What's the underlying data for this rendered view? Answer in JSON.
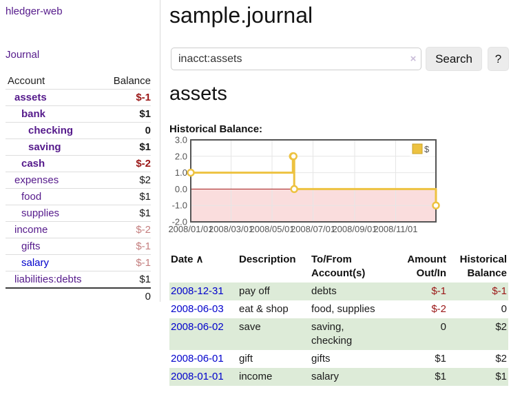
{
  "app": {
    "brand": "hledger-web",
    "nav_journal": "Journal"
  },
  "sidebar": {
    "headers": {
      "account": "Account",
      "balance": "Balance"
    },
    "accounts": [
      {
        "name": "assets",
        "balance": "$-1"
      },
      {
        "name": "bank",
        "balance": "$1"
      },
      {
        "name": "checking",
        "balance": "0"
      },
      {
        "name": "saving",
        "balance": "$1"
      },
      {
        "name": "cash",
        "balance": "$-2"
      },
      {
        "name": "expenses",
        "balance": "$2"
      },
      {
        "name": "food",
        "balance": "$1"
      },
      {
        "name": "supplies",
        "balance": "$1"
      },
      {
        "name": "income",
        "balance": "$-2"
      },
      {
        "name": "gifts",
        "balance": "$-1"
      },
      {
        "name": "salary",
        "balance": "$-1"
      },
      {
        "name": "liabilities:debts",
        "balance": "$1"
      }
    ],
    "total": "0"
  },
  "main": {
    "title": "sample.journal",
    "search": {
      "value": "inacct:assets",
      "clear_icon": "×",
      "button_label": "Search",
      "help_label": "?"
    },
    "account_heading": "assets",
    "chart_heading": "Historical Balance:"
  },
  "register": {
    "headers": {
      "date": "Date",
      "sort_icon": "∧",
      "description": "Description",
      "accounts": "To/From\nAccount(s)",
      "amount": "Amount\nOut/In",
      "balance": "Historical\nBalance"
    },
    "rows": [
      {
        "date": "2008-12-31",
        "description": "pay off",
        "accounts": "debts",
        "amount": "$-1",
        "balance": "$-1"
      },
      {
        "date": "2008-06-03",
        "description": "eat & shop",
        "accounts": "food, supplies",
        "amount": "$-2",
        "balance": "0"
      },
      {
        "date": "2008-06-02",
        "description": "save",
        "accounts": "saving,\nchecking",
        "amount": "0",
        "balance": "$2"
      },
      {
        "date": "2008-06-01",
        "description": "gift",
        "accounts": "gifts",
        "amount": "$1",
        "balance": "$2"
      },
      {
        "date": "2008-01-01",
        "description": "income",
        "accounts": "salary",
        "amount": "$1",
        "balance": "$1"
      }
    ]
  },
  "chart_data": {
    "type": "line",
    "title": "Historical Balance:",
    "step": true,
    "series": [
      {
        "name": "$",
        "points": [
          [
            "2008-01-01",
            1
          ],
          [
            "2008-06-01",
            2
          ],
          [
            "2008-06-02",
            2
          ],
          [
            "2008-06-03",
            0
          ],
          [
            "2008-12-31",
            -1
          ]
        ],
        "color": "#edc240"
      }
    ],
    "x_ticks": [
      "2008/01/01",
      "2008/03/01",
      "2008/05/01",
      "2008/07/01",
      "2008/09/01",
      "2008/11/01"
    ],
    "y_ticks": [
      3.0,
      2.0,
      1.0,
      0.0,
      -1.0,
      -2.0
    ],
    "xlim": [
      "2008-01-01",
      "2008-12-31"
    ],
    "ylim": [
      -2,
      3
    ],
    "grid": true,
    "legend_position": "top-right",
    "negative_region_color": "#fadddd",
    "zero_line_color": "#a81c1c",
    "grid_color": "#e6e6e6",
    "border_color": "#545454",
    "axis_text_color": "#545454"
  },
  "colors": {
    "purple_link": "#551a8b",
    "blue_link": "#0000cc",
    "negative_strong": "#9a1616",
    "negative_soft": "#c47e7e",
    "row_stripe_green": "#ddebd8",
    "chart_line_gold": "#edc240",
    "chart_negative_pink": "#fadddd",
    "chart_zero_line": "#a81c1c",
    "button_bg": "#ececec"
  }
}
